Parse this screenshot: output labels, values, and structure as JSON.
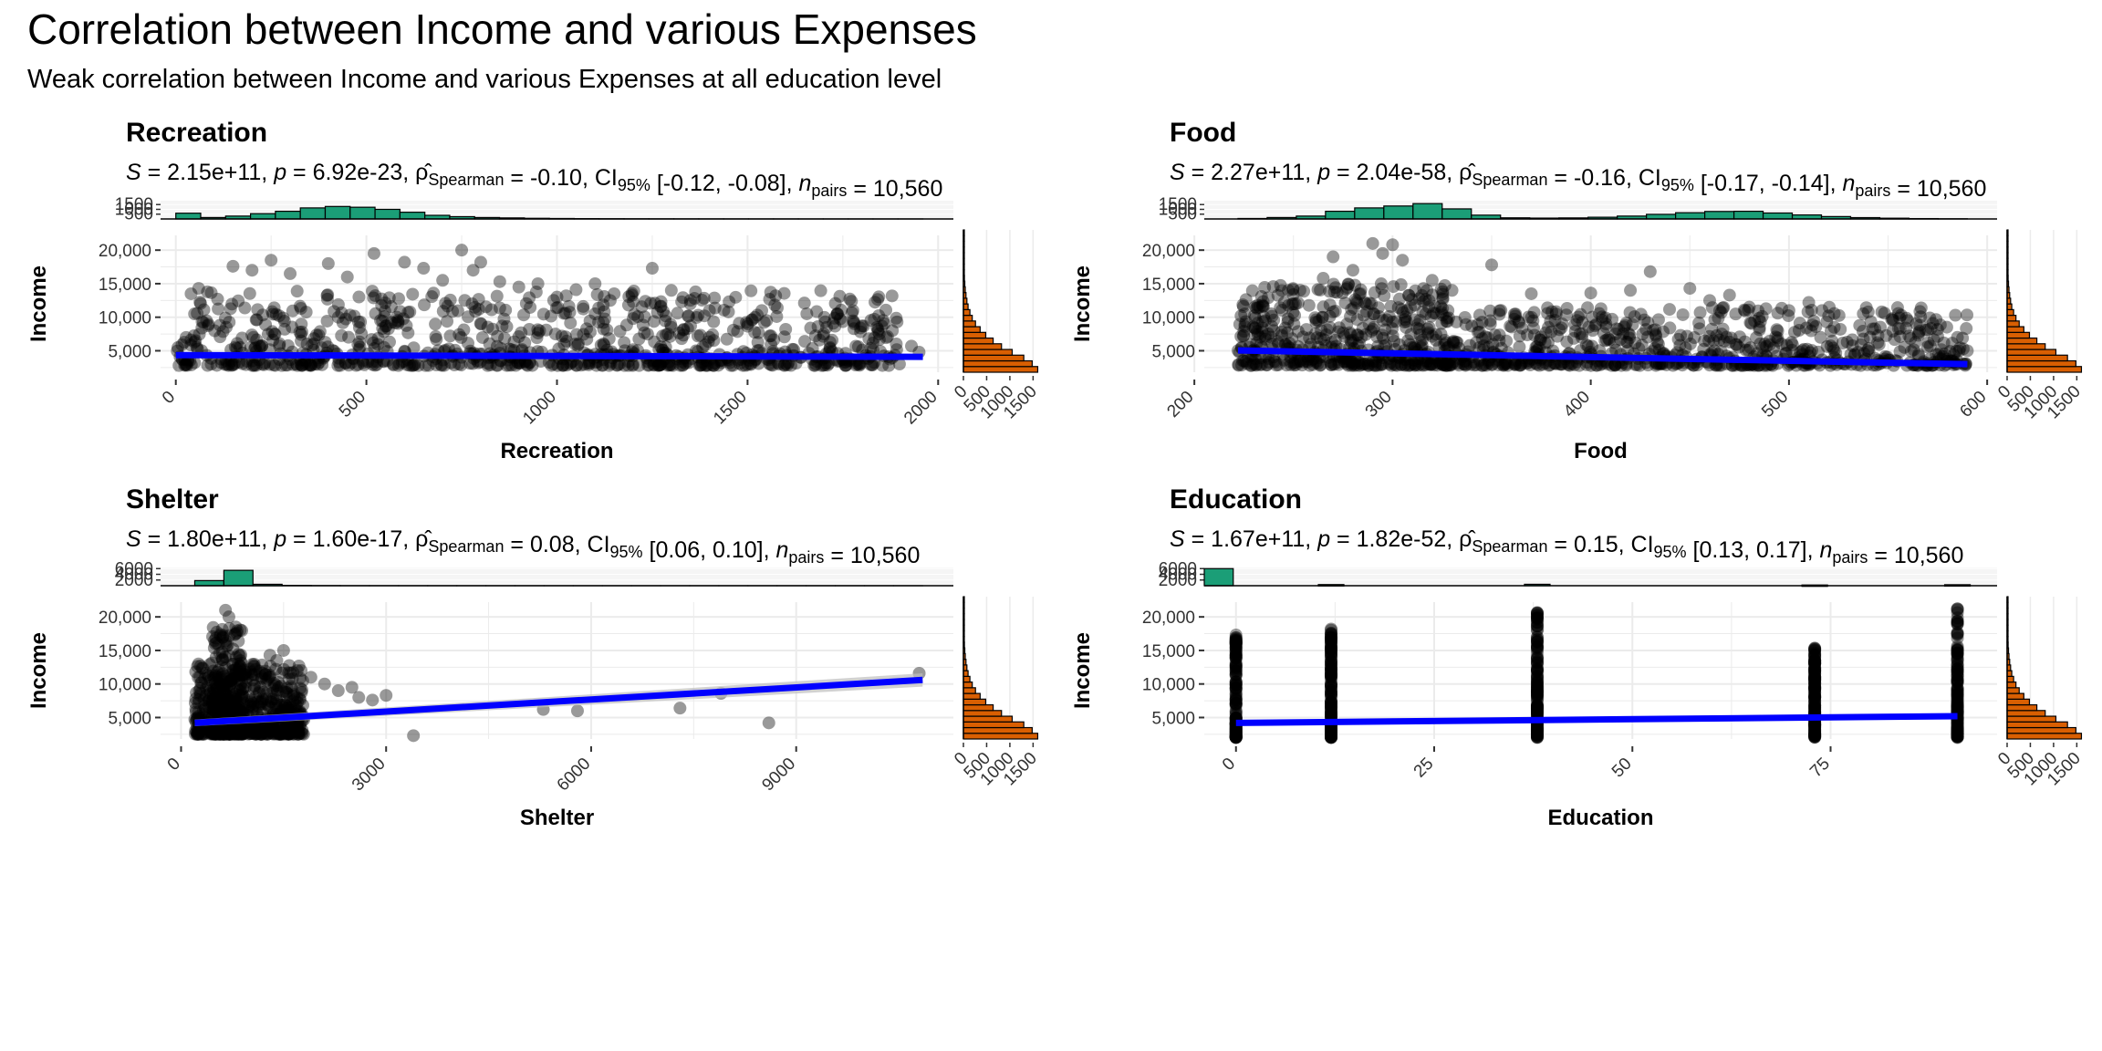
{
  "figure": {
    "title": "Correlation between Income and various Expenses",
    "subtitle": "Weak correlation between Income and various Expenses at all education level"
  },
  "colors": {
    "points": "#000000",
    "fit_line": "#0000FF",
    "top_histogram": "#1B9E77",
    "side_histogram": "#D95F02",
    "grid": "#EBEBEB",
    "confidence_band": "#BEBEBE"
  },
  "chart_data": [
    {
      "type": "scatter",
      "title": "Recreation",
      "stats": {
        "S": "2.15e+11",
        "p": "6.92e-23",
        "rho": "-0.10",
        "ci": "[-0.12, -0.08]",
        "n": "10,560"
      },
      "xlabel": "Recreation",
      "ylabel": "Income",
      "xlim": [
        -40,
        2040
      ],
      "ylim": [
        1800,
        22200
      ],
      "xticks": [
        0,
        500,
        1000,
        1500,
        2000
      ],
      "xtick_labels": [
        "0",
        "500",
        "1000",
        "1500",
        "2000"
      ],
      "yticks": [
        5000,
        10000,
        15000,
        20000
      ],
      "ytick_labels": [
        "5,000",
        "10,000",
        "15,000",
        "20,000"
      ],
      "fit": [
        [
          0,
          4350
        ],
        [
          1960,
          4100
        ]
      ],
      "ci_band": null,
      "outliers": [
        [
          60,
          14300
        ],
        [
          40,
          13500
        ],
        [
          150,
          17600
        ],
        [
          200,
          17000
        ],
        [
          250,
          18500
        ],
        [
          300,
          16500
        ],
        [
          400,
          18000
        ],
        [
          450,
          16000
        ],
        [
          520,
          19500
        ],
        [
          600,
          18200
        ],
        [
          650,
          17300
        ],
        [
          700,
          15500
        ],
        [
          750,
          20000
        ],
        [
          780,
          17000
        ],
        [
          800,
          18200
        ],
        [
          850,
          15300
        ],
        [
          900,
          14500
        ],
        [
          950,
          15000
        ],
        [
          1000,
          13000
        ],
        [
          1050,
          14100
        ],
        [
          1100,
          15000
        ],
        [
          1150,
          13500
        ],
        [
          1200,
          12300
        ],
        [
          1250,
          17300
        ],
        [
          1300,
          14000
        ],
        [
          1350,
          12000
        ],
        [
          1400,
          11000
        ],
        [
          1450,
          10800
        ],
        [
          1500,
          9000
        ],
        [
          1550,
          9500
        ],
        [
          1600,
          8200
        ],
        [
          1700,
          7500
        ],
        [
          1800,
          8700
        ],
        [
          1880,
          8000
        ],
        [
          1930,
          5700
        ],
        [
          1950,
          4800
        ],
        [
          1650,
          6400
        ],
        [
          1100,
          10500
        ],
        [
          1200,
          9800
        ],
        [
          1300,
          8500
        ],
        [
          1400,
          7000
        ]
      ],
      "band_y": [
        2800,
        14000
      ],
      "band_x": [
        0,
        1900
      ],
      "top_hist": {
        "ticks": [
          500,
          1000,
          1500
        ],
        "tick_labels": [
          "500",
          "1000",
          "1500"
        ],
        "max": 1900,
        "counts": [
          600,
          150,
          300,
          550,
          800,
          1150,
          1300,
          1220,
          1000,
          700,
          380,
          240,
          150,
          110,
          70,
          50,
          35,
          25,
          20,
          15,
          12,
          10,
          8,
          6,
          5,
          4,
          3,
          3,
          2,
          2
        ]
      },
      "side_hist": {
        "ticks": [
          0,
          500,
          1000,
          1500
        ],
        "tick_labels": [
          "0",
          "500",
          "1000",
          "1500"
        ],
        "max": 1650,
        "counts": [
          1600,
          1480,
          1300,
          1050,
          820,
          640,
          480,
          360,
          260,
          190,
          140,
          100,
          75,
          55,
          40,
          30,
          22,
          16,
          12,
          8,
          6,
          4,
          3,
          2,
          1
        ]
      }
    },
    {
      "type": "scatter",
      "title": "Food",
      "stats": {
        "S": "2.27e+11",
        "p": "2.04e-58",
        "rho": "-0.16",
        "ci": "[-0.17, -0.14]",
        "n": "10,560"
      },
      "xlabel": "Food",
      "ylabel": "Income",
      "xlim": [
        205,
        605
      ],
      "ylim": [
        1800,
        22200
      ],
      "xticks": [
        200,
        300,
        400,
        500,
        600
      ],
      "xtick_labels": [
        "200",
        "300",
        "400",
        "500",
        "600"
      ],
      "yticks": [
        5000,
        10000,
        15000,
        20000
      ],
      "ytick_labels": [
        "5,000",
        "10,000",
        "15,000",
        "20,000"
      ],
      "fit": [
        [
          222,
          5050
        ],
        [
          590,
          3000
        ]
      ],
      "ci_band": null,
      "outliers": [
        [
          225,
          3500
        ],
        [
          240,
          8000
        ],
        [
          250,
          12000
        ],
        [
          265,
          15800
        ],
        [
          270,
          19000
        ],
        [
          280,
          17000
        ],
        [
          290,
          21000
        ],
        [
          295,
          19500
        ],
        [
          300,
          20800
        ],
        [
          305,
          18500
        ],
        [
          320,
          15500
        ],
        [
          330,
          14000
        ],
        [
          350,
          17800
        ],
        [
          370,
          13500
        ],
        [
          400,
          13600
        ],
        [
          420,
          14000
        ],
        [
          430,
          16800
        ],
        [
          450,
          14300
        ],
        [
          460,
          12500
        ],
        [
          480,
          11500
        ],
        [
          500,
          11000
        ],
        [
          520,
          10200
        ],
        [
          540,
          10800
        ],
        [
          560,
          9500
        ],
        [
          575,
          8200
        ],
        [
          585,
          7000
        ],
        [
          590,
          5000
        ],
        [
          510,
          12200
        ],
        [
          470,
          13300
        ]
      ],
      "blobs": [
        {
          "band_x": [
            222,
            330
          ],
          "band_y": [
            2800,
            15000
          ]
        },
        {
          "band_x": [
            330,
            590
          ],
          "band_y": [
            2800,
            11500
          ]
        }
      ],
      "top_hist": {
        "ticks": [
          500,
          1000,
          1500
        ],
        "tick_labels": [
          "500",
          "1000",
          "1500"
        ],
        "max": 1900,
        "counts": [
          50,
          150,
          300,
          800,
          1150,
          1350,
          1600,
          1050,
          400,
          120,
          90,
          110,
          180,
          300,
          480,
          650,
          780,
          800,
          620,
          420,
          250,
          140,
          80,
          40,
          20
        ]
      },
      "side_hist": {
        "ticks": [
          0,
          500,
          1000,
          1500
        ],
        "tick_labels": [
          "0",
          "500",
          "1000",
          "1500"
        ],
        "max": 1650,
        "counts": [
          1600,
          1480,
          1300,
          1050,
          820,
          640,
          480,
          360,
          260,
          190,
          140,
          100,
          75,
          55,
          40,
          30,
          22,
          16,
          12,
          8,
          6,
          4,
          3,
          2,
          1
        ]
      }
    },
    {
      "type": "scatter",
      "title": "Shelter",
      "stats": {
        "S": "1.80e+11",
        "p": "1.60e-17",
        "rho": "0.08",
        "ci": "[0.06, 0.10]",
        "n": "10,560"
      },
      "xlabel": "Shelter",
      "ylabel": "Income",
      "xlim": [
        -300,
        11300
      ],
      "ylim": [
        1800,
        22200
      ],
      "xticks": [
        0,
        3000,
        6000,
        9000
      ],
      "xtick_labels": [
        "0",
        "3000",
        "6000",
        "9000"
      ],
      "yticks": [
        5000,
        10000,
        15000,
        20000
      ],
      "ytick_labels": [
        "5,000",
        "10,000",
        "15,000",
        "20,000"
      ],
      "fit": [
        [
          200,
          4200
        ],
        [
          10850,
          10600
        ]
      ],
      "ci_band": [
        [
          200,
          3700,
          4700
        ],
        [
          10850,
          9600,
          11600
        ]
      ],
      "outliers": [
        [
          650,
          21000
        ],
        [
          700,
          20000
        ],
        [
          800,
          18500
        ],
        [
          1300,
          14300
        ],
        [
          1400,
          13500
        ],
        [
          1500,
          15000
        ],
        [
          1700,
          12000
        ],
        [
          2100,
          10000
        ],
        [
          2300,
          9000
        ],
        [
          2600,
          8000
        ],
        [
          2800,
          7600
        ],
        [
          3000,
          8300
        ],
        [
          3400,
          2300
        ],
        [
          5300,
          6200
        ],
        [
          5800,
          6000
        ],
        [
          7300,
          6400
        ],
        [
          7900,
          8600
        ],
        [
          8600,
          4200
        ],
        [
          10800,
          11600
        ],
        [
          1900,
          11000
        ],
        [
          2500,
          9500
        ]
      ],
      "blobs": [
        {
          "band_x": [
            200,
            1800
          ],
          "band_y": [
            2500,
            13000
          ]
        }
      ],
      "spike": {
        "band_x": [
          450,
          900
        ],
        "band_y": [
          2500,
          18500
        ]
      },
      "top_hist": {
        "ticks": [
          2000,
          4000,
          6000
        ],
        "tick_labels": [
          "2000",
          "4000",
          "6000"
        ],
        "max": 6400,
        "counts": [
          1800,
          5400,
          500,
          100,
          40,
          15,
          10,
          8,
          5,
          4,
          3,
          2,
          2,
          1,
          1,
          1,
          1,
          1,
          1,
          1,
          1,
          1,
          1,
          1,
          1
        ]
      },
      "side_hist": {
        "ticks": [
          0,
          500,
          1000,
          1500
        ],
        "tick_labels": [
          "0",
          "500",
          "1000",
          "1500"
        ],
        "max": 1650,
        "counts": [
          1600,
          1480,
          1300,
          1050,
          820,
          640,
          480,
          360,
          260,
          190,
          140,
          100,
          75,
          55,
          40,
          30,
          22,
          16,
          12,
          8,
          6,
          4,
          3,
          2,
          1
        ]
      }
    },
    {
      "type": "scatter",
      "title": "Education",
      "stats": {
        "S": "1.67e+11",
        "p": "1.82e-52",
        "rho": "0.15",
        "ci": "[0.13, 0.17]",
        "n": "10,560"
      },
      "xlabel": "Education",
      "ylabel": "Income",
      "xlim": [
        -4,
        96
      ],
      "ylim": [
        1800,
        22200
      ],
      "xticks": [
        0,
        25,
        50,
        75
      ],
      "xtick_labels": [
        "0",
        "25",
        "50",
        "75"
      ],
      "yticks": [
        5000,
        10000,
        15000,
        20000
      ],
      "ytick_labels": [
        "5,000",
        "10,000",
        "15,000",
        "20,000"
      ],
      "fit": [
        [
          0,
          4200
        ],
        [
          91,
          5200
        ]
      ],
      "ci_band": null,
      "columns": [
        {
          "x": 0,
          "ymin": 2000,
          "ymax": 17500
        },
        {
          "x": 12,
          "ymin": 2000,
          "ymax": 18300
        },
        {
          "x": 38,
          "ymin": 2000,
          "ymax": 21000
        },
        {
          "x": 73,
          "ymin": 2000,
          "ymax": 15500
        },
        {
          "x": 91,
          "ymin": 2000,
          "ymax": 21500
        }
      ],
      "outliers": [],
      "top_hist": {
        "ticks": [
          2000,
          4000,
          6000
        ],
        "tick_labels": [
          "2000",
          "4000",
          "6000"
        ],
        "max": 6400,
        "counts": [
          6000,
          0,
          0,
          0,
          0,
          0,
          0,
          0,
          0,
          0,
          0,
          0,
          0,
          0,
          0,
          0,
          0,
          0,
          0,
          0,
          0,
          0,
          0,
          0,
          0,
          0
        ],
        "spikes": [
          {
            "x": 12,
            "count": 400
          },
          {
            "x": 38,
            "count": 500
          },
          {
            "x": 73,
            "count": 250
          },
          {
            "x": 91,
            "count": 350
          }
        ]
      },
      "side_hist": {
        "ticks": [
          0,
          500,
          1000,
          1500
        ],
        "tick_labels": [
          "0",
          "500",
          "1000",
          "1500"
        ],
        "max": 1650,
        "counts": [
          1600,
          1480,
          1300,
          1050,
          820,
          640,
          480,
          360,
          260,
          190,
          140,
          100,
          75,
          55,
          40,
          30,
          22,
          16,
          12,
          8,
          6,
          4,
          3,
          2,
          1
        ]
      }
    }
  ]
}
